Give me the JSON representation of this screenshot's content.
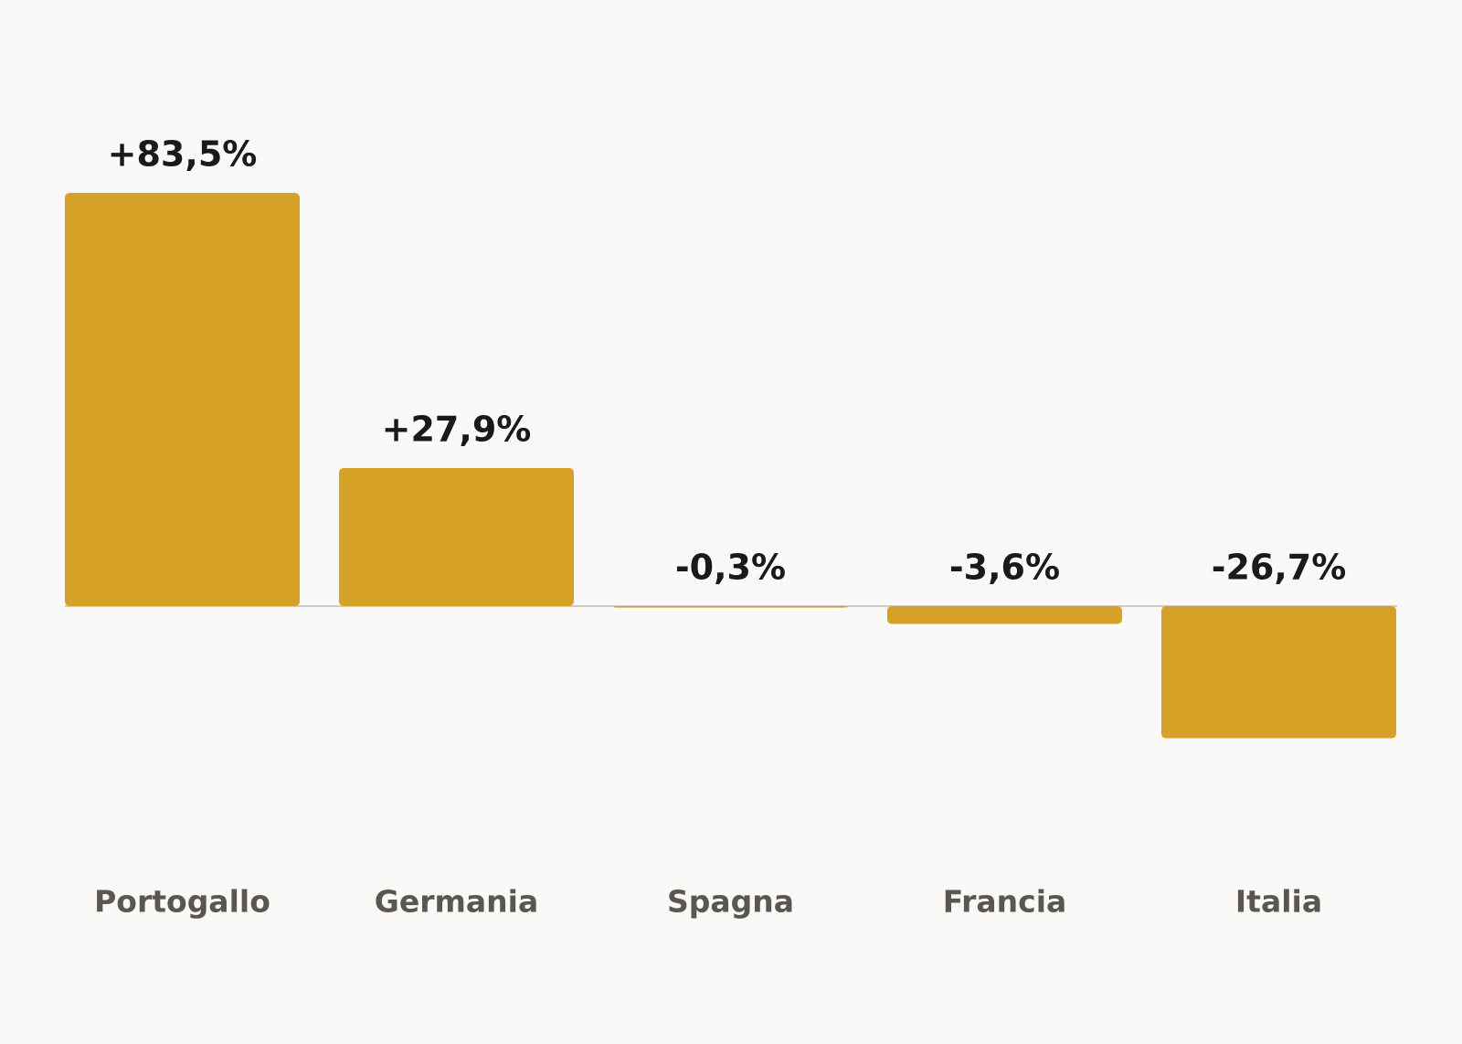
{
  "chart_data": {
    "type": "bar",
    "categories": [
      "Portogallo",
      "Germania",
      "Spagna",
      "Francia",
      "Italia"
    ],
    "values": [
      83.5,
      27.9,
      -0.3,
      -3.6,
      -26.7
    ],
    "value_labels": [
      "+83,5%",
      "+27,9%",
      "-0,3%",
      "-3,6%",
      "-26,7%"
    ],
    "color": "#d6a126"
  }
}
